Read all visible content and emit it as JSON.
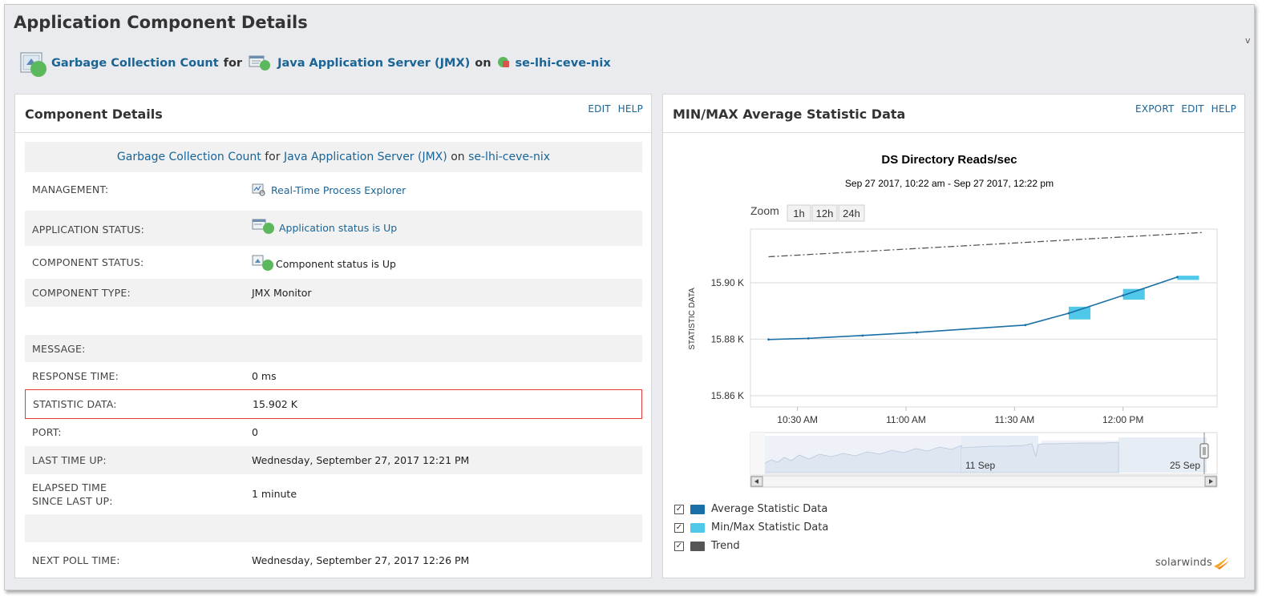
{
  "page": {
    "title": "Application Component Details",
    "corner_mark": "v"
  },
  "breadcrumb": {
    "component": "Garbage Collection Count",
    "for_word": "for",
    "application": "Java Application Server (JMX)",
    "on_word": "on",
    "node": "se-lhi-ceve-nix"
  },
  "left_panel": {
    "title": "Component Details",
    "edit": "EDIT",
    "help": "HELP",
    "summary": {
      "component": "Garbage Collection Count",
      "for_word": "for",
      "application": "Java Application Server (JMX)",
      "on_word": "on",
      "node": "se-lhi-ceve-nix"
    },
    "rows": {
      "management": {
        "label": "MANAGEMENT:",
        "value": "Real-Time Process Explorer"
      },
      "app_status": {
        "label": "APPLICATION STATUS:",
        "value": "Application status is Up"
      },
      "comp_status": {
        "label": "COMPONENT STATUS:",
        "value": "Component status is Up"
      },
      "comp_type": {
        "label": "COMPONENT TYPE:",
        "value": "JMX Monitor"
      },
      "message": {
        "label": "MESSAGE:",
        "value": ""
      },
      "response_time": {
        "label": "RESPONSE TIME:",
        "value": "0 ms"
      },
      "statistic": {
        "label": "STATISTIC DATA:",
        "value": "15.902 K"
      },
      "port": {
        "label": "PORT:",
        "value": "0"
      },
      "last_up": {
        "label": "LAST TIME UP:",
        "value": "Wednesday, September 27, 2017 12:21 PM"
      },
      "elapsed": {
        "label_line1": "ELAPSED TIME",
        "label_line2": "SINCE LAST UP:",
        "value": "1 minute"
      },
      "next_poll": {
        "label": "NEXT POLL TIME:",
        "value": "Wednesday, September 27, 2017 12:26 PM"
      }
    }
  },
  "right_panel": {
    "title": "MIN/MAX Average Statistic Data",
    "export": "EXPORT",
    "edit": "EDIT",
    "help": "HELP",
    "zoom": {
      "label": "Zoom",
      "buttons": [
        "1h",
        "12h",
        "24h"
      ]
    },
    "navigator_labels": [
      "11 Sep",
      "25 Sep"
    ],
    "legend": [
      "Average Statistic Data",
      "Min/Max Statistic Data",
      "Trend"
    ],
    "brand": "solarwinds"
  },
  "colors": {
    "link": "#1a6496",
    "average": "#1a6fa6",
    "minmax": "#4fc8ea",
    "trend": "#555555",
    "status_up": "#5cb85c",
    "highlight_border": "#e03a3a"
  },
  "chart_data": {
    "type": "line",
    "title": "DS Directory Reads/sec",
    "subtitle": "Sep 27 2017, 10:22 am - Sep 27 2017, 12:22 pm",
    "ylabel": "STATISTIC DATA",
    "xlabel": "",
    "x_ticks": [
      "10:30 AM",
      "11:00 AM",
      "11:30 AM",
      "12:00 PM"
    ],
    "y_ticks": [
      "15.86 K",
      "15.88 K",
      "15.90 K"
    ],
    "ylim": [
      15.856,
      15.919
    ],
    "grid": true,
    "legend_position": "bottom-left",
    "series": [
      {
        "name": "Average Statistic Data",
        "x": [
          "10:22",
          "10:33",
          "10:48",
          "11:03",
          "11:33",
          "11:45",
          "12:00",
          "12:15"
        ],
        "y": [
          15.8799,
          15.8803,
          15.8813,
          15.8824,
          15.885,
          15.8892,
          15.8955,
          15.902
        ]
      },
      {
        "name": "Min/Max Statistic Data",
        "ranges": [
          {
            "x_start": "11:45",
            "x_end": "11:51",
            "low": 15.887,
            "high": 15.8915
          },
          {
            "x_start": "12:00",
            "x_end": "12:06",
            "low": 15.894,
            "high": 15.8978
          },
          {
            "x_start": "12:15",
            "x_end": "12:21",
            "low": 15.901,
            "high": 15.9025
          }
        ]
      },
      {
        "name": "Trend",
        "x": [
          "10:22",
          "12:22"
        ],
        "y": [
          15.9092,
          15.9178
        ]
      }
    ]
  }
}
